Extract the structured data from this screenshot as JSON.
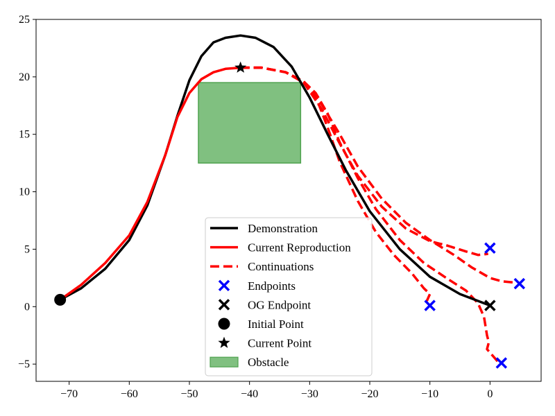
{
  "chart_data": {
    "type": "line",
    "title": "",
    "xlabel": "",
    "ylabel": "",
    "xlim": [
      -75.5,
      8.5
    ],
    "ylim": [
      -6.5,
      25
    ],
    "grid": false,
    "legend_placement": "lower center",
    "x_ticks": [
      -70,
      -60,
      -50,
      -40,
      -30,
      -20,
      -10,
      0
    ],
    "y_ticks": [
      -5,
      0,
      5,
      10,
      15,
      20,
      25
    ],
    "colors": {
      "demonstration": "#000000",
      "reproduction": "#ff0000",
      "endpoints": "#0000ff",
      "obstacle_fill": "#80c080",
      "obstacle_edge": "#4ea24e"
    },
    "series": [
      {
        "name": "Demonstration",
        "style": "solid",
        "color": "#000000",
        "points": [
          [
            -71.5,
            0.6
          ],
          [
            -68,
            1.6
          ],
          [
            -64,
            3.3
          ],
          [
            -60,
            5.8
          ],
          [
            -57,
            8.8
          ],
          [
            -54,
            13.2
          ],
          [
            -52,
            16.6
          ],
          [
            -50,
            19.7
          ],
          [
            -48,
            21.8
          ],
          [
            -46,
            23
          ],
          [
            -44,
            23.4
          ],
          [
            -41.5,
            23.6
          ],
          [
            -39,
            23.4
          ],
          [
            -36,
            22.6
          ],
          [
            -33,
            20.9
          ],
          [
            -30,
            18.2
          ],
          [
            -27,
            15
          ],
          [
            -24,
            11.9
          ],
          [
            -20,
            8.3
          ],
          [
            -15,
            5
          ],
          [
            -10,
            2.6
          ],
          [
            -5,
            1.1
          ],
          [
            0,
            0.1
          ]
        ]
      },
      {
        "name": "Current Reproduction",
        "style": "solid",
        "color": "#ff0000",
        "points": [
          [
            -71.5,
            0.6
          ],
          [
            -68,
            1.9
          ],
          [
            -64,
            3.8
          ],
          [
            -60,
            6.2
          ],
          [
            -57,
            9.1
          ],
          [
            -54,
            13.2
          ],
          [
            -52,
            16.5
          ],
          [
            -50,
            18.6
          ],
          [
            -48,
            19.8
          ],
          [
            -46,
            20.4
          ],
          [
            -44,
            20.7
          ],
          [
            -41.5,
            20.8
          ]
        ]
      }
    ],
    "continuations": {
      "name": "Continuations",
      "style": "dashed",
      "color": "#ff0000",
      "lines": [
        [
          [
            -41.5,
            20.8
          ],
          [
            -38,
            20.8
          ],
          [
            -34,
            20.4
          ],
          [
            -31,
            19.6
          ],
          [
            -29,
            18.3
          ],
          [
            -27,
            15.6
          ],
          [
            -25,
            12.6
          ],
          [
            -22,
            9.2
          ],
          [
            -19,
            6.5
          ],
          [
            -16,
            4.5
          ],
          [
            -13,
            2.9
          ],
          [
            -11,
            1.6
          ],
          [
            -10,
            1.1
          ],
          [
            -10.5,
            0.5
          ]
        ],
        [
          [
            -41.5,
            20.8
          ],
          [
            -38,
            20.8
          ],
          [
            -34,
            20.4
          ],
          [
            -31,
            19.6
          ],
          [
            -29,
            18.6
          ],
          [
            -27,
            16.8
          ],
          [
            -25,
            14.3
          ],
          [
            -22,
            11.2
          ],
          [
            -19,
            8.5
          ],
          [
            -15,
            5.8
          ],
          [
            -11,
            3.8
          ],
          [
            -7,
            2.4
          ],
          [
            -4,
            1.4
          ],
          [
            -2,
            0.3
          ],
          [
            -1,
            -0.9
          ],
          [
            -0.5,
            -2.5
          ],
          [
            -0.2,
            -3.1
          ],
          [
            -0.5,
            -3.7
          ],
          [
            1.5,
            -4.9
          ]
        ],
        [
          [
            -41.5,
            20.8
          ],
          [
            -38,
            20.8
          ],
          [
            -34,
            20.4
          ],
          [
            -31,
            19.5
          ],
          [
            -28,
            17.2
          ],
          [
            -25,
            14.2
          ],
          [
            -22,
            11.4
          ],
          [
            -18,
            8.7
          ],
          [
            -14,
            6.8
          ],
          [
            -10,
            5.7
          ],
          [
            -7,
            5.3
          ],
          [
            -4,
            4.8
          ],
          [
            -2,
            4.5
          ],
          [
            -0.3,
            4.6
          ]
        ],
        [
          [
            -41.5,
            20.8
          ],
          [
            -38,
            20.8
          ],
          [
            -34,
            20.4
          ],
          [
            -31,
            19.6
          ],
          [
            -28,
            17.6
          ],
          [
            -25,
            15
          ],
          [
            -22,
            12.2
          ],
          [
            -18,
            9.4
          ],
          [
            -14,
            7.3
          ],
          [
            -10,
            5.8
          ],
          [
            -6,
            4.5
          ],
          [
            -3,
            3.4
          ],
          [
            0,
            2.5
          ],
          [
            2,
            2.2
          ],
          [
            4,
            2.1
          ]
        ]
      ]
    },
    "endpoints": {
      "name": "Endpoints",
      "marker": "x",
      "color": "#0000ff",
      "points": [
        [
          -10,
          0.1
        ],
        [
          1.9,
          -4.9
        ],
        [
          0,
          5.1
        ],
        [
          4.9,
          2
        ]
      ]
    },
    "og_endpoint": {
      "name": "OG Endpoint",
      "marker": "x",
      "color": "#000000",
      "point": [
        0,
        0.1
      ]
    },
    "initial_point": {
      "name": "Initial Point",
      "marker": "circle",
      "color": "#000000",
      "point": [
        -71.5,
        0.6
      ]
    },
    "current_point": {
      "name": "Current Point",
      "marker": "star",
      "color": "#000000",
      "point": [
        -41.5,
        20.8
      ]
    },
    "obstacle": {
      "name": "Obstacle",
      "x": [
        -48.5,
        -31.5
      ],
      "y": [
        12.5,
        19.5
      ],
      "fill": "#80c080",
      "edge": "#4ea24e"
    },
    "legend": [
      {
        "key": "demonstration",
        "label": "Demonstration"
      },
      {
        "key": "reproduction",
        "label": "Current Reproduction"
      },
      {
        "key": "continuations",
        "label": "Continuations"
      },
      {
        "key": "endpoints",
        "label": "Endpoints"
      },
      {
        "key": "og_endpoint",
        "label": "OG Endpoint"
      },
      {
        "key": "initial_point",
        "label": "Initial Point"
      },
      {
        "key": "current_point",
        "label": "Current Point"
      },
      {
        "key": "obstacle",
        "label": "Obstacle"
      }
    ]
  }
}
